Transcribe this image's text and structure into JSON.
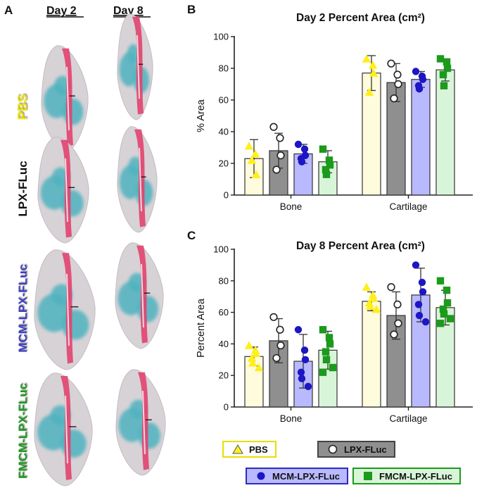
{
  "panel_a": {
    "label": "A",
    "columns": [
      "Day 2",
      "Day 8"
    ],
    "rows": [
      {
        "label": "PBS",
        "color": "#f2e600"
      },
      {
        "label": "LPX-FLuc",
        "color": "#111111"
      },
      {
        "label": "MCM-LPX-FLuc",
        "color": "#3d3dc4"
      },
      {
        "label": "FMCM-LPX-FLuc",
        "color": "#1b9a1b"
      }
    ]
  },
  "chart_data": [
    {
      "panel_label": "B",
      "type": "bar",
      "title": "Day 2 Percent Area (cm²)",
      "xlabel": "",
      "ylabel": "% Area",
      "ylim": [
        0,
        100
      ],
      "yticks": [
        "0",
        "20",
        "40",
        "60",
        "80",
        "100"
      ],
      "categories": [
        "Bone",
        "Cartilage"
      ],
      "series": [
        {
          "name": "PBS",
          "values": [
            23,
            77
          ],
          "errors": [
            12,
            11
          ],
          "points": [
            [
              31,
              26,
              13,
              22
            ],
            [
              86,
              82,
              77,
              65
            ]
          ]
        },
        {
          "name": "LPX-FLuc",
          "values": [
            28,
            71
          ],
          "errors": [
            11,
            12
          ],
          "points": [
            [
              43,
              36,
              25,
              16
            ],
            [
              83,
              76,
              70,
              61
            ]
          ]
        },
        {
          "name": "MCM-LPX-FLuc",
          "values": [
            26,
            73
          ],
          "errors": [
            6,
            5
          ],
          "points": [
            [
              32,
              29,
              25,
              23,
              21
            ],
            [
              78,
              75,
              73,
              69,
              67
            ]
          ]
        },
        {
          "name": "FMCM-LPX-FLuc",
          "values": [
            21,
            79
          ],
          "errors": [
            7,
            7
          ],
          "points": [
            [
              29,
              22,
              19,
              16,
              13
            ],
            [
              86,
              84,
              80,
              76,
              69
            ]
          ]
        }
      ]
    },
    {
      "panel_label": "C",
      "type": "bar",
      "title": "Day 8 Percent Area (cm²)",
      "xlabel": "",
      "ylabel": "Percent Area",
      "ylim": [
        0,
        100
      ],
      "yticks": [
        "0",
        "20",
        "40",
        "60",
        "80",
        "100"
      ],
      "categories": [
        "Bone",
        "Cartilage"
      ],
      "series": [
        {
          "name": "PBS",
          "values": [
            32,
            67
          ],
          "errors": [
            6,
            6
          ],
          "points": [
            [
              39,
              36,
              34,
              31,
              28,
              25
            ],
            [
              76,
              71,
              69,
              66,
              64,
              62
            ]
          ]
        },
        {
          "name": "LPX-FLuc",
          "values": [
            42,
            58
          ],
          "errors": [
            14,
            15
          ],
          "points": [
            [
              57,
              49,
              39,
              31
            ],
            [
              76,
              65,
              53,
              46
            ]
          ]
        },
        {
          "name": "MCM-LPX-FLuc",
          "values": [
            29,
            71
          ],
          "errors": [
            17,
            17
          ],
          "points": [
            [
              49,
              36,
              30,
              22,
              18,
              13
            ],
            [
              90,
              79,
              73,
              65,
              58,
              54
            ]
          ]
        },
        {
          "name": "FMCM-LPX-FLuc",
          "values": [
            36,
            63
          ],
          "errors": [
            12,
            11
          ],
          "points": [
            [
              49,
              44,
              40,
              35,
              30,
              25,
              22
            ],
            [
              80,
              74,
              66,
              62,
              59,
              56,
              53
            ]
          ]
        }
      ]
    }
  ],
  "series_style": [
    {
      "fill": "#fffbdd",
      "stroke": "#333333",
      "marker": "triangle",
      "marker_color": "#ffef1a",
      "legend_border": "#e6df00"
    },
    {
      "fill": "#8f8f8f",
      "stroke": "#333333",
      "marker": "open-circle",
      "marker_color": "#222222",
      "legend_border": "#444444"
    },
    {
      "fill": "#b9b9ff",
      "stroke": "#333333",
      "marker": "circle",
      "marker_color": "#1c16c4",
      "legend_border": "#2d2dbb"
    },
    {
      "fill": "#d9f5d9",
      "stroke": "#333333",
      "marker": "square",
      "marker_color": "#1b9a1b",
      "legend_border": "#1e9a1e"
    }
  ],
  "legend": [
    {
      "label": "PBS"
    },
    {
      "label": "LPX-FLuc"
    },
    {
      "label": "MCM-LPX-FLuc"
    },
    {
      "label": "FMCM-LPX-FLuc"
    }
  ]
}
